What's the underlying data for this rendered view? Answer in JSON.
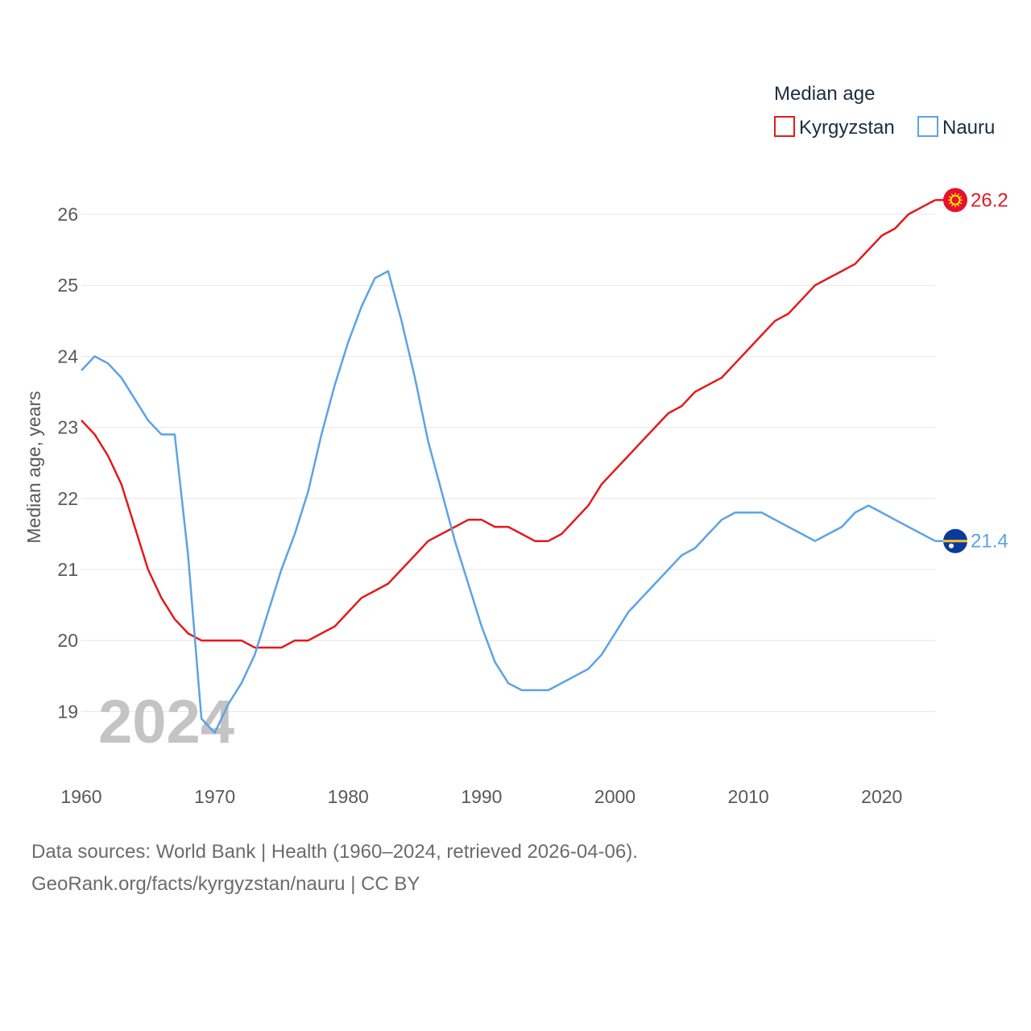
{
  "chart_data": {
    "type": "line",
    "ylabel": "Median age, years",
    "xlabel": "",
    "xlim": [
      1960,
      2024
    ],
    "ylim": [
      18.5,
      26.3
    ],
    "x_ticks": [
      1960,
      1970,
      1980,
      1990,
      2000,
      2010,
      2020
    ],
    "y_ticks": [
      19,
      20,
      21,
      22,
      23,
      24,
      25,
      26
    ],
    "year_label": "2024",
    "legend": {
      "title": "Median age",
      "position": "top-right"
    },
    "x": [
      1960,
      1961,
      1962,
      1963,
      1964,
      1965,
      1966,
      1967,
      1968,
      1969,
      1970,
      1971,
      1972,
      1973,
      1974,
      1975,
      1976,
      1977,
      1978,
      1979,
      1980,
      1981,
      1982,
      1983,
      1984,
      1985,
      1986,
      1987,
      1988,
      1989,
      1990,
      1991,
      1992,
      1993,
      1994,
      1995,
      1996,
      1997,
      1998,
      1999,
      2000,
      2001,
      2002,
      2003,
      2004,
      2005,
      2006,
      2007,
      2008,
      2009,
      2010,
      2011,
      2012,
      2013,
      2014,
      2015,
      2016,
      2017,
      2018,
      2019,
      2020,
      2021,
      2022,
      2023,
      2024
    ],
    "series": [
      {
        "name": "Kyrgyzstan",
        "color": "#e31a1c",
        "end_label": "26.2",
        "flag_icon": "kyrgyzstan-flag-icon",
        "values": [
          23.1,
          22.9,
          22.6,
          22.2,
          21.6,
          21.0,
          20.6,
          20.3,
          20.1,
          20.0,
          20.0,
          20.0,
          20.0,
          19.9,
          19.9,
          19.9,
          20.0,
          20.0,
          20.1,
          20.2,
          20.4,
          20.6,
          20.7,
          20.8,
          21.0,
          21.2,
          21.4,
          21.5,
          21.6,
          21.7,
          21.7,
          21.6,
          21.6,
          21.5,
          21.4,
          21.4,
          21.5,
          21.7,
          21.9,
          22.2,
          22.4,
          22.6,
          22.8,
          23.0,
          23.2,
          23.3,
          23.5,
          23.6,
          23.7,
          23.9,
          24.1,
          24.3,
          24.5,
          24.6,
          24.8,
          25.0,
          25.1,
          25.2,
          25.3,
          25.5,
          25.7,
          25.8,
          26.0,
          26.1,
          26.2
        ]
      },
      {
        "name": "Nauru",
        "color": "#5ba3e6",
        "end_label": "21.4",
        "flag_icon": "nauru-flag-icon",
        "values": [
          23.8,
          24.0,
          23.9,
          23.7,
          23.4,
          23.1,
          22.9,
          22.9,
          21.2,
          18.9,
          18.7,
          19.1,
          19.4,
          19.8,
          20.4,
          21.0,
          21.5,
          22.1,
          22.9,
          23.6,
          24.2,
          24.7,
          25.1,
          25.2,
          24.5,
          23.7,
          22.8,
          22.1,
          21.4,
          20.8,
          20.2,
          19.7,
          19.4,
          19.3,
          19.3,
          19.3,
          19.4,
          19.5,
          19.6,
          19.8,
          20.1,
          20.4,
          20.6,
          20.8,
          21.0,
          21.2,
          21.3,
          21.5,
          21.7,
          21.8,
          21.8,
          21.8,
          21.7,
          21.6,
          21.5,
          21.4,
          21.5,
          21.6,
          21.8,
          21.9,
          21.8,
          21.7,
          21.6,
          21.5,
          21.4
        ]
      }
    ]
  },
  "footer": {
    "line1": "Data sources: World Bank | Health (1960–2024, retrieved 2026-04-06).",
    "line2": "GeoRank.org/facts/kyrgyzstan/nauru | CC BY"
  }
}
